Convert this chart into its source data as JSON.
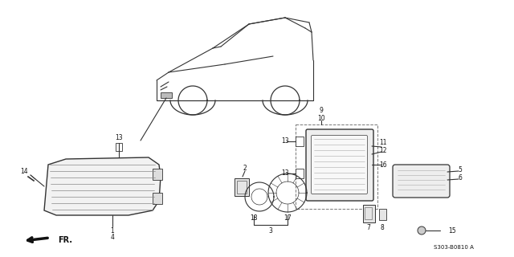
{
  "background_color": "#ffffff",
  "part_number": "S303-B0810 A",
  "line_color": "#333333",
  "label_color": "#111111"
}
